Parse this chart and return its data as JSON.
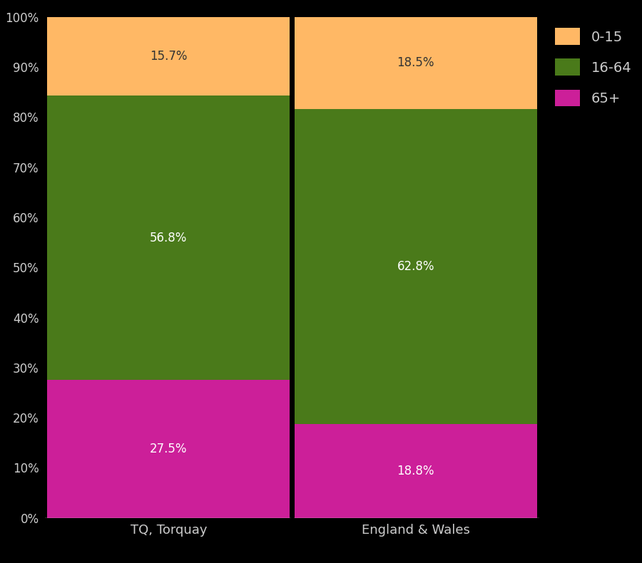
{
  "categories": [
    "TQ, Torquay",
    "England & Wales"
  ],
  "segments": {
    "65+": [
      27.5,
      18.8
    ],
    "16-64": [
      56.8,
      62.8
    ],
    "0-15": [
      15.7,
      18.5
    ]
  },
  "colors": {
    "65+": "#cc1f99",
    "16-64": "#4a7a1a",
    "0-15": "#ffb865"
  },
  "label_colors": {
    "65+": "white",
    "16-64": "white",
    "0-15": "#333333"
  },
  "background_color": "#000000",
  "text_color": "#cccccc",
  "yticks": [
    0,
    10,
    20,
    30,
    40,
    50,
    60,
    70,
    80,
    90,
    100
  ],
  "ylim": [
    0,
    100
  ],
  "bar_width": 0.98,
  "legend_labels": [
    "0-15",
    "16-64",
    "65+"
  ],
  "legend_colors": [
    "#ffb865",
    "#4a7a1a",
    "#cc1f99"
  ]
}
